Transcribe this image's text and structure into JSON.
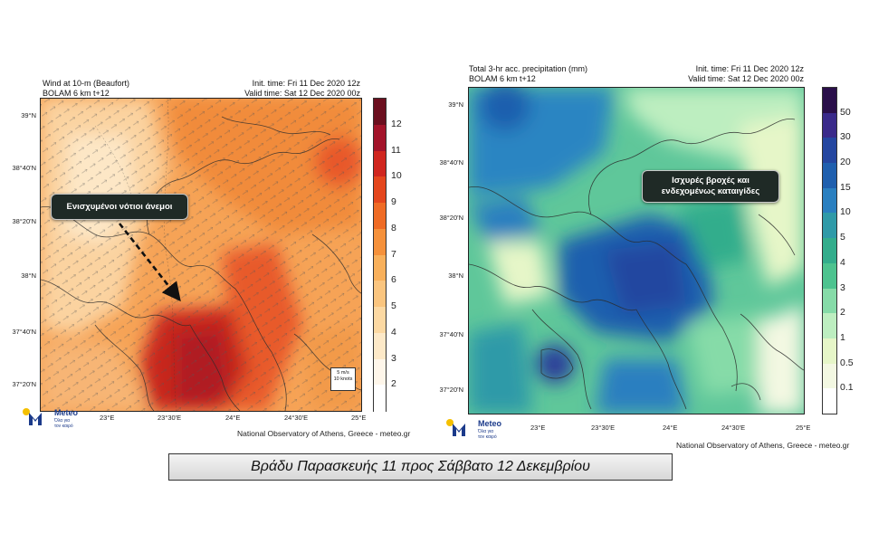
{
  "left_map": {
    "title_line1": "Wind at 10-m (Beaufort)",
    "title_line2": "BOLAM 6 km t+12",
    "init_time": "Init. time: Fri 11 Dec 2020 12z",
    "valid_time": "Valid time: Sat 12 Dec 2020 00z",
    "lat_ticks": [
      "39°N",
      "38°40'N",
      "38°20'N",
      "38°N",
      "37°40'N",
      "37°20'N"
    ],
    "lon_ticks": [
      "23°E",
      "23°30'E",
      "24°E",
      "24°30'E",
      "25°E"
    ],
    "colorbar_labels": [
      "12",
      "11",
      "10",
      "9",
      "8",
      "7",
      "6",
      "5",
      "4",
      "3",
      "2"
    ],
    "colorbar_colors": [
      "#6b0f1f",
      "#a3142a",
      "#d0261f",
      "#e4461d",
      "#ef6b25",
      "#f5913b",
      "#f8b05b",
      "#fac57f",
      "#fcd9a3",
      "#fde9c8",
      "#fef6ea",
      "#ffffff"
    ],
    "annotation": "Ενισχυμένοι νότιοι άνεμοι",
    "scale_line1": "5 m/s",
    "scale_line2": "10 knots",
    "credit": "National Observatory of Athens, Greece - meteo.gr"
  },
  "right_map": {
    "title_line1": "Total 3-hr acc. precipitation (mm)",
    "title_line2": "BOLAM 6 km t+12",
    "init_time": "Init. time: Fri 11 Dec 2020 12z",
    "valid_time": "Valid time: Sat 12 Dec 2020 00z",
    "lat_ticks": [
      "39°N",
      "38°40'N",
      "38°20'N",
      "38°N",
      "37°40'N",
      "37°20'N"
    ],
    "lon_ticks": [
      "23°E",
      "23°30'E",
      "24°E",
      "24°30'E",
      "25°E"
    ],
    "colorbar_labels": [
      "50",
      "30",
      "20",
      "15",
      "10",
      "5",
      "4",
      "3",
      "2",
      "1",
      "0.5",
      "0.1"
    ],
    "colorbar_colors": [
      "#2a0f4a",
      "#3a2a8a",
      "#2446a0",
      "#1f5fae",
      "#2a7fc0",
      "#2f9aa8",
      "#33ad8c",
      "#4dc38f",
      "#86dba8",
      "#bdeec0",
      "#e6f6c8",
      "#f3f8e2",
      "#ffffff"
    ],
    "annotation_line1": "Ισχυρές βροχές και",
    "annotation_line2": "ενδεχομένως καταιγίδες",
    "credit": "National Observatory of Athens, Greece - meteo.gr"
  },
  "logo": {
    "brand": "Meteo",
    "tagline_line1": "Όλα για",
    "tagline_line2": "τον καιρό"
  },
  "caption": "Βράδυ Παρασκευής 11 προς Σάββατο 12 Δεκεμβρίου"
}
